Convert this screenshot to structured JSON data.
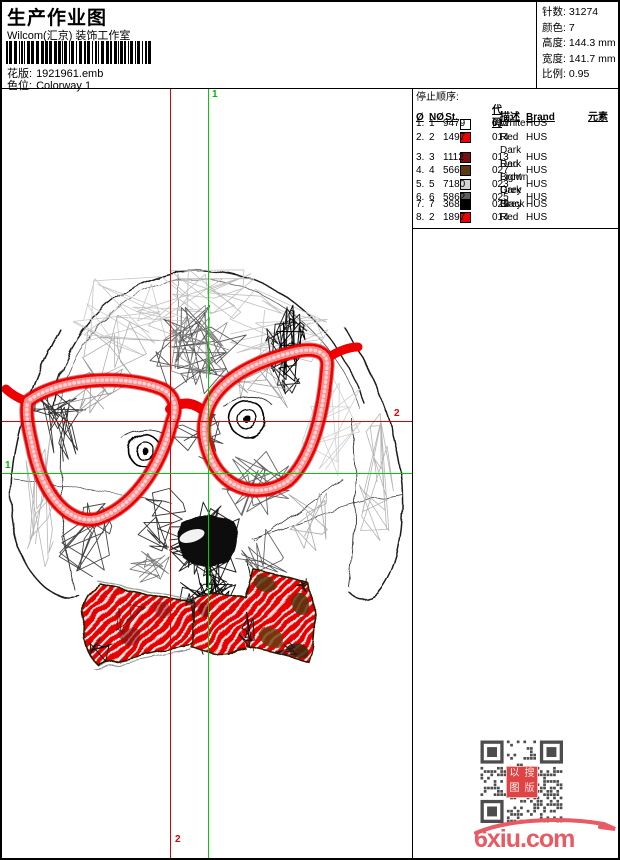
{
  "header": {
    "title": "生产作业图",
    "company": "Wilcom(汇京) 装饰工作室",
    "pattern_label": "花版:",
    "pattern_value": "1921961.emb",
    "colorway_label": "色位:",
    "colorway_value": "Colorway 1"
  },
  "info": {
    "stitches_label": "针数:",
    "stitches": "31274",
    "colors_label": "颜色:",
    "colors": "7",
    "height_label": "高度:",
    "height": "144.3 mm",
    "width_label": "宽度:",
    "width": "141.7 mm",
    "scale_label": "比例:",
    "scale": "0.95"
  },
  "stop_table": {
    "title": "停止顺序:",
    "headers": [
      "Ø",
      "NØ",
      "St.",
      "",
      "代码",
      "描述",
      "Brand",
      "元素"
    ],
    "rows": [
      {
        "seq": "1.",
        "n": "1",
        "swatch": "#ffffff",
        "st": "9479",
        "code": "022",
        "desc": "White",
        "brand": "HUS",
        "elem": ""
      },
      {
        "seq": "2.",
        "n": "2",
        "swatch": "#ee0000",
        "st": "1497",
        "code": "014",
        "desc": "Red",
        "brand": "HUS",
        "elem": ""
      },
      {
        "seq": "3.",
        "n": "3",
        "swatch": "#7a0f0f",
        "st": "1112",
        "code": "013",
        "desc": "Dark Red",
        "brand": "HUS",
        "elem": ""
      },
      {
        "seq": "4.",
        "n": "4",
        "swatch": "#5c3a10",
        "st": "566",
        "code": "027",
        "desc": "Dark Brown",
        "brand": "HUS",
        "elem": ""
      },
      {
        "seq": "5.",
        "n": "5",
        "swatch": "#d4d4d4",
        "st": "7180",
        "code": "023",
        "desc": "Light Grey",
        "brand": "HUS",
        "elem": ""
      },
      {
        "seq": "6.",
        "n": "6",
        "swatch": "#5e5e5e",
        "st": "5862",
        "code": "025",
        "desc": "Dark Grey",
        "brand": "HUS",
        "elem": ""
      },
      {
        "seq": "7.",
        "n": "7",
        "swatch": "#000000",
        "st": "3681",
        "code": "026",
        "desc": "Black",
        "brand": "HUS",
        "elem": ""
      },
      {
        "seq": "8.",
        "n": "2",
        "swatch": "#ee0000",
        "st": "1897",
        "code": "014",
        "desc": "Red",
        "brand": "HUS",
        "elem": ""
      }
    ]
  },
  "guides": {
    "start_label": "1",
    "end_label": "2",
    "green": "#00cc00",
    "red": "#dd0000"
  },
  "watermark": {
    "text": "6xiu.com",
    "color": "#e85a64"
  },
  "qr": {
    "module_color": "#4d4d4d",
    "seal_chars": [
      "以",
      "图",
      "搜",
      "版"
    ]
  }
}
